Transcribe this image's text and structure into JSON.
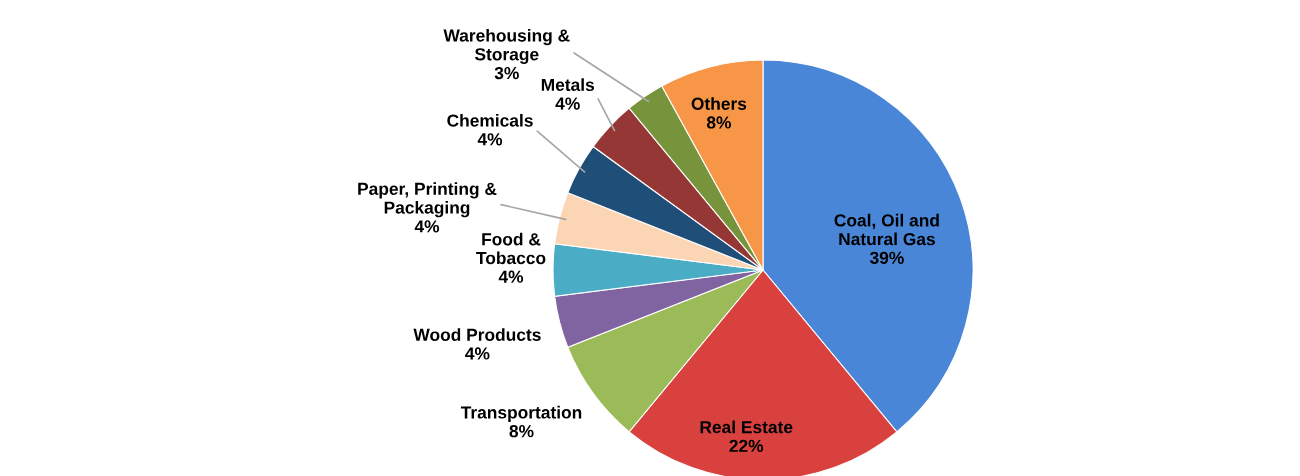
{
  "chart_data": {
    "type": "pie",
    "categories": [
      "Coal, Oil and\nNatural Gas",
      "Real Estate",
      "Transportation",
      "Wood Products",
      "Food &\nTobacco",
      "Paper, Printing &\nPackaging",
      "Chemicals",
      "Metals",
      "Warehousing &\nStorage",
      "Others"
    ],
    "values": [
      39,
      22,
      8,
      4,
      4,
      4,
      4,
      4,
      3,
      8
    ],
    "colors": [
      "#4a86d8",
      "#d9413f",
      "#9bbb59",
      "#8064a2",
      "#4bacc6",
      "#fcd5b4",
      "#1f4e79",
      "#953735",
      "#77933c",
      "#f79646"
    ],
    "value_labels": [
      "39%",
      "22%",
      "8%",
      "4%",
      "4%",
      "4%",
      "4%",
      "4%",
      "3%",
      "8%"
    ],
    "legend": false
  }
}
